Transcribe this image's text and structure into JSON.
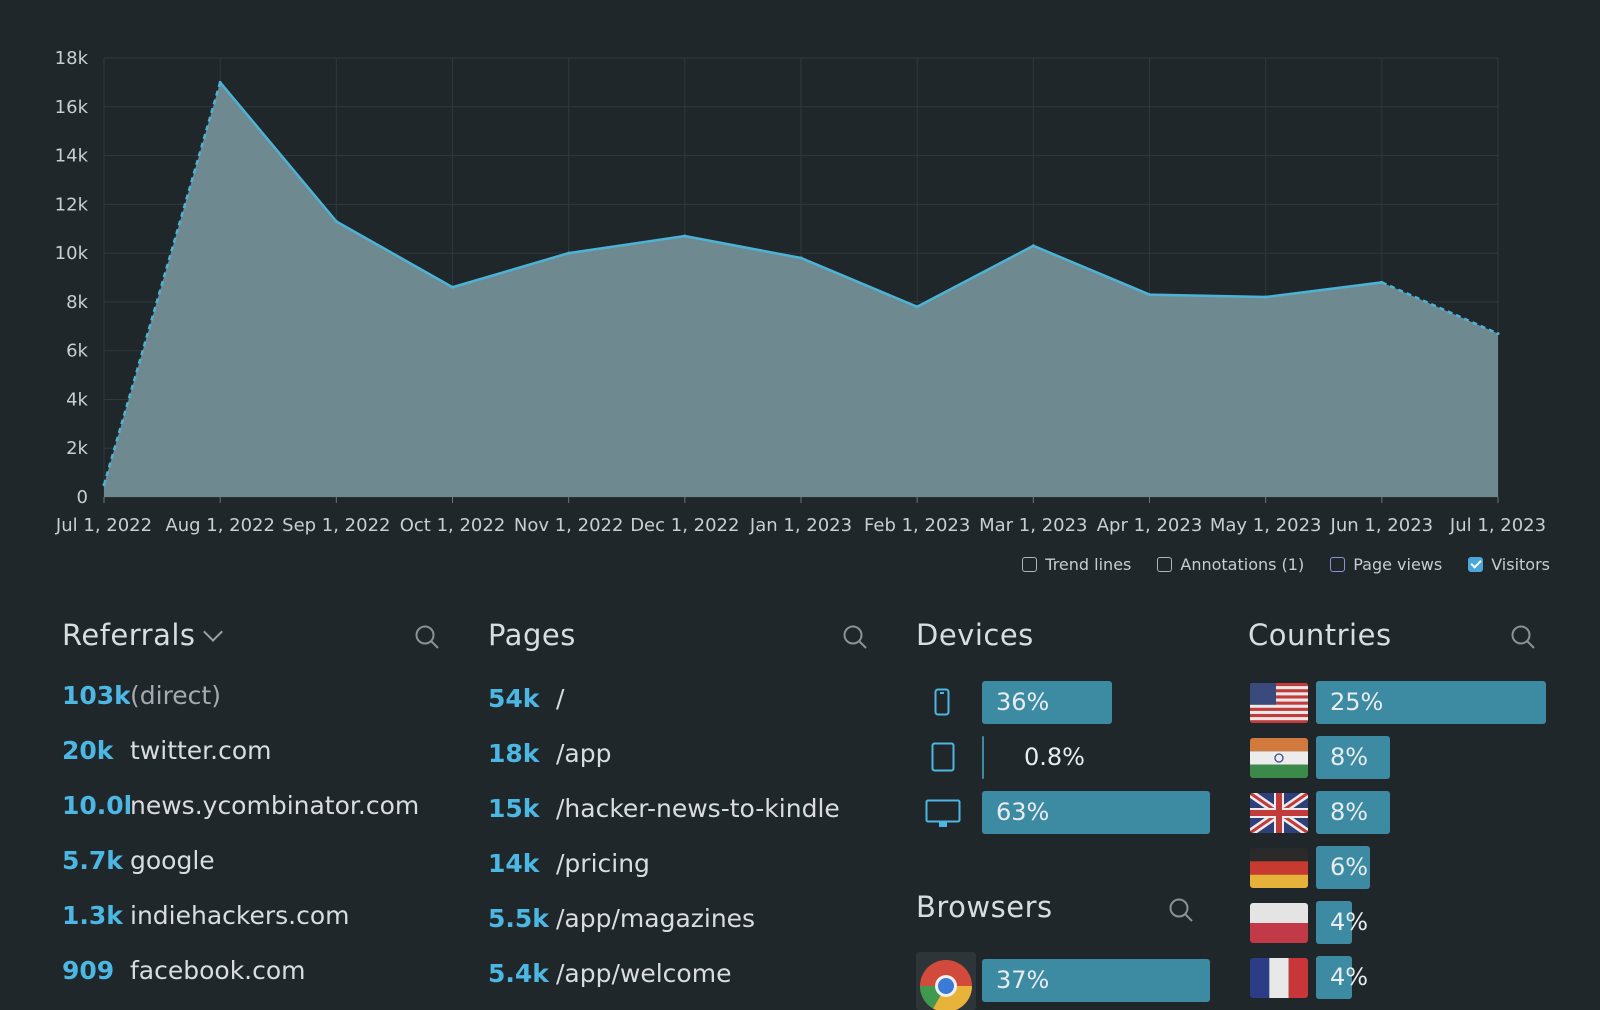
{
  "chart_data": {
    "type": "area",
    "x": [
      "Jul 1, 2022",
      "Aug 1, 2022",
      "Sep 1, 2022",
      "Oct 1, 2022",
      "Nov 1, 2022",
      "Dec 1, 2022",
      "Jan 1, 2023",
      "Feb 1, 2023",
      "Mar 1, 2023",
      "Apr 1, 2023",
      "May 1, 2023",
      "Jun 1, 2023",
      "Jul 1, 2023"
    ],
    "values": [
      500,
      17000,
      11300,
      8600,
      10000,
      10700,
      9800,
      7800,
      10300,
      8300,
      8200,
      8800,
      6700
    ],
    "yticks": [
      "0",
      "2k",
      "4k",
      "6k",
      "8k",
      "10k",
      "12k",
      "14k",
      "16k",
      "18k"
    ],
    "ylim": [
      0,
      18000
    ],
    "grid": true,
    "line_color": "#4cb3d6",
    "fill_color": "#6e8a90",
    "dashed_segments": "first and last"
  },
  "legend": {
    "items": [
      {
        "label": "Trend lines",
        "checked": false
      },
      {
        "label": "Annotations (1)",
        "checked": false
      },
      {
        "label": "Page views",
        "checked": false
      },
      {
        "label": "Visitors",
        "checked": true
      }
    ]
  },
  "referrals": {
    "title": "Referrals",
    "items": [
      {
        "count": "103k",
        "label": "(direct)"
      },
      {
        "count": "20k",
        "label": "twitter.com"
      },
      {
        "count": "10.0k",
        "label": "news.ycombinator.com"
      },
      {
        "count": "5.7k",
        "label": "google"
      },
      {
        "count": "1.3k",
        "label": "indiehackers.com"
      },
      {
        "count": "909",
        "label": "facebook.com"
      }
    ]
  },
  "pages": {
    "title": "Pages",
    "items": [
      {
        "count": "54k",
        "label": "/"
      },
      {
        "count": "18k",
        "label": "/app"
      },
      {
        "count": "15k",
        "label": "/hacker-news-to-kindle"
      },
      {
        "count": "14k",
        "label": "/pricing"
      },
      {
        "count": "5.5k",
        "label": "/app/magazines"
      },
      {
        "count": "5.4k",
        "label": "/app/welcome"
      }
    ]
  },
  "devices": {
    "title": "Devices",
    "items": [
      {
        "icon": "phone-icon",
        "percent": "36%",
        "share": 0.36
      },
      {
        "icon": "tablet-icon",
        "percent": "0.8%",
        "share": 0.008
      },
      {
        "icon": "desktop-icon",
        "percent": "63%",
        "share": 0.63
      }
    ]
  },
  "browsers": {
    "title": "Browsers",
    "items": [
      {
        "icon": "chrome-icon",
        "percent": "37%",
        "share": 0.37
      }
    ]
  },
  "countries": {
    "title": "Countries",
    "items": [
      {
        "flag": "us-flag-icon",
        "percent": "25%",
        "share": 0.25
      },
      {
        "flag": "india-flag-icon",
        "percent": "8%",
        "share": 0.08
      },
      {
        "flag": "uk-flag-icon",
        "percent": "8%",
        "share": 0.08
      },
      {
        "flag": "germany-flag-icon",
        "percent": "6%",
        "share": 0.06
      },
      {
        "flag": "poland-flag-icon",
        "percent": "4%",
        "share": 0.04
      },
      {
        "flag": "france-flag-icon",
        "percent": "4%",
        "share": 0.04
      }
    ]
  }
}
